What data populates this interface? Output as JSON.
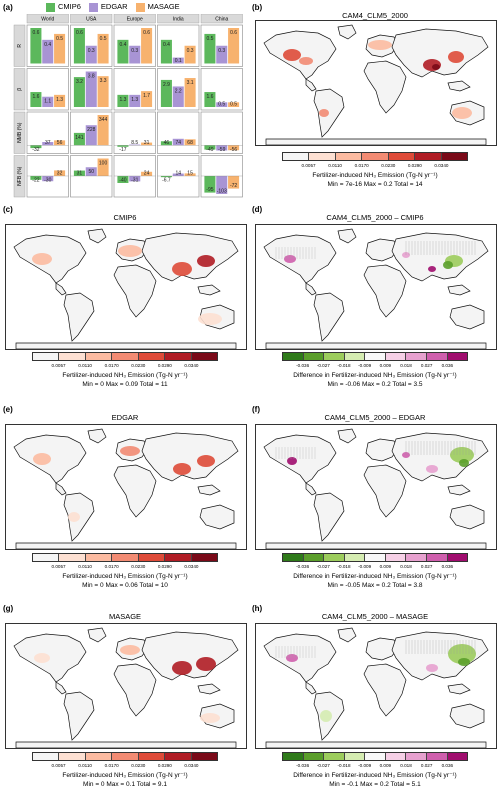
{
  "colors": {
    "cmip6": "#5cb85c",
    "edgar": "#a894d4",
    "masage": "#f7b26e",
    "emission_scale": [
      "#f5f5f5",
      "#fde0d2",
      "#fcbba1",
      "#f28b73",
      "#de4b39",
      "#b01d25",
      "#7a0a18"
    ],
    "diff_scale": [
      "#2f7a1a",
      "#5b9e2b",
      "#9ccc5c",
      "#d5ecb1",
      "#f8f8f8",
      "#f6d0e6",
      "#e7a1cf",
      "#cf5fad",
      "#a00d6e"
    ]
  },
  "panel_labels": [
    "(a)",
    "(b)",
    "(c)",
    "(d)",
    "(e)",
    "(f)",
    "(g)",
    "(h)"
  ],
  "legend": [
    "CMIP6",
    "EDGAR",
    "MASAGE"
  ],
  "chart_data": [
    {
      "type": "bar",
      "panel": "(a)",
      "regions": [
        "World",
        "USA",
        "Europe",
        "India",
        "China"
      ],
      "metrics": [
        "R",
        "β",
        "NMB (%)",
        "NFB (%)"
      ],
      "series_names": [
        "CMIP6",
        "EDGAR",
        "MASAGE"
      ],
      "values": {
        "R": [
          [
            0.6,
            0.4,
            0.5
          ],
          [
            0.6,
            0.3,
            0.5
          ],
          [
            0.4,
            0.3,
            0.6
          ],
          [
            0.4,
            0.1,
            0.3
          ],
          [
            0.5,
            0.3,
            0.6
          ]
        ],
        "β": [
          [
            1.6,
            1.1,
            1.3
          ],
          [
            3.2,
            3.8,
            3.3
          ],
          [
            1.3,
            1.3,
            1.7
          ],
          [
            2.9,
            2.2,
            3.1
          ],
          [
            1.6,
            0.5,
            0.5
          ]
        ],
        "NMB (%)": [
          [
            -32,
            37,
            56
          ],
          [
            141,
            228,
            344
          ],
          [
            -17,
            8.5,
            31
          ],
          [
            46,
            74,
            68
          ],
          [
            -49,
            -59,
            -56
          ]
        ],
        "NFB (%)": [
          [
            -22,
            -30,
            32
          ],
          [
            31,
            50,
            100
          ],
          [
            -40,
            -31,
            24
          ],
          [
            -6.7,
            14,
            15
          ],
          [
            -95,
            -103,
            -72
          ]
        ]
      },
      "labels": {
        "R": [
          [
            "0.6",
            "0.4",
            "0.5"
          ],
          [
            "0.6",
            "0.3",
            "0.5"
          ],
          [
            "0.4",
            "0.3",
            "0.6"
          ],
          [
            "0.4",
            "0.1",
            "0.3"
          ],
          [
            "0.5",
            "0.3",
            "0.6"
          ]
        ],
        "β": [
          [
            "1.6",
            "1.1",
            "1.3"
          ],
          [
            "3.2",
            "3.8",
            "3.3"
          ],
          [
            "1.3",
            "1.3",
            "1.7"
          ],
          [
            "2.9",
            "2.2",
            "3.1"
          ],
          [
            "1.6",
            "0.5",
            "0.5"
          ]
        ],
        "NMB (%)": [
          [
            "-32",
            "37",
            "56"
          ],
          [
            "141",
            "228",
            "344"
          ],
          [
            "-17",
            "8.5",
            "31"
          ],
          [
            "46",
            "74",
            "68"
          ],
          [
            "-49",
            "-59",
            "-56"
          ]
        ],
        "NFB (%)": [
          [
            "-22",
            "-30",
            "32"
          ],
          [
            "31",
            "50",
            "100"
          ],
          [
            "-40",
            "-31",
            "24"
          ],
          [
            "-6.7",
            "14",
            "15"
          ],
          [
            "-95",
            "-103",
            "-72"
          ]
        ]
      }
    },
    {
      "type": "heatmap",
      "panel": "(b)",
      "title": "CAM4_CLM5_2000",
      "colorbar_ticks": [
        "0.0057",
        "0.0110",
        "0.0170",
        "0.0230",
        "0.0290",
        "0.0340"
      ],
      "colorbar_label": "Fertilizer-induced NH₃ Emission (Tg-N yr⁻¹)",
      "stats": "Min = 7e-16   Max = 0.2   Total = 14"
    },
    {
      "type": "heatmap",
      "panel": "(c)",
      "title": "CMIP6",
      "colorbar_ticks": [
        "0.0057",
        "0.0110",
        "0.0170",
        "0.0230",
        "0.0290",
        "0.0340"
      ],
      "colorbar_label": "Fertilizer-induced NH₃ Emission (Tg-N yr⁻¹)",
      "stats": "Min = 0   Max = 0.09   Total = 11"
    },
    {
      "type": "heatmap",
      "panel": "(d)",
      "title": "CAM4_CLM5_2000 – CMIP6",
      "colorbar_ticks": [
        "-0.036",
        "-0.027",
        "-0.018",
        "-0.009",
        "0.009",
        "0.018",
        "0.027",
        "0.036"
      ],
      "colorbar_label": "Difference in Fertilizer-induced NH₃ Emission (Tg-N yr⁻¹)",
      "stats": "Min = -0.06   Max = 0.2   Total = 3.5"
    },
    {
      "type": "heatmap",
      "panel": "(e)",
      "title": "EDGAR",
      "colorbar_ticks": [
        "0.0057",
        "0.0110",
        "0.0170",
        "0.0230",
        "0.0290",
        "0.0340"
      ],
      "colorbar_label": "Fertilizer-induced NH₃ Emission (Tg-N yr⁻¹)",
      "stats": "Min = 0   Max = 0.06   Total = 10"
    },
    {
      "type": "heatmap",
      "panel": "(f)",
      "title": "CAM4_CLM5_2000 – EDGAR",
      "colorbar_ticks": [
        "-0.036",
        "-0.027",
        "-0.018",
        "-0.009",
        "0.009",
        "0.018",
        "0.027",
        "0.036"
      ],
      "colorbar_label": "Difference in Fertilizer-induced NH₃ Emission (Tg-N yr⁻¹)",
      "stats": "Min = -0.05   Max = 0.2   Total = 3.8"
    },
    {
      "type": "heatmap",
      "panel": "(g)",
      "title": "MASAGE",
      "colorbar_ticks": [
        "0.0057",
        "0.0110",
        "0.0170",
        "0.0230",
        "0.0290",
        "0.0340"
      ],
      "colorbar_label": "Fertilizer-induced NH₃ Emission (Tg-N yr⁻¹)",
      "stats": "Min = 0   Max = 0.1   Total = 9.1"
    },
    {
      "type": "heatmap",
      "panel": "(h)",
      "title": "CAM4_CLM5_2000 – MASAGE",
      "colorbar_ticks": [
        "-0.036",
        "-0.027",
        "-0.018",
        "-0.009",
        "0.009",
        "0.018",
        "0.027",
        "0.036"
      ],
      "colorbar_label": "Difference in Fertilizer-induced NH₃ Emission (Tg-N yr⁻¹)",
      "stats": "Min = -0.1   Max = 0.2   Total = 5.1"
    }
  ]
}
